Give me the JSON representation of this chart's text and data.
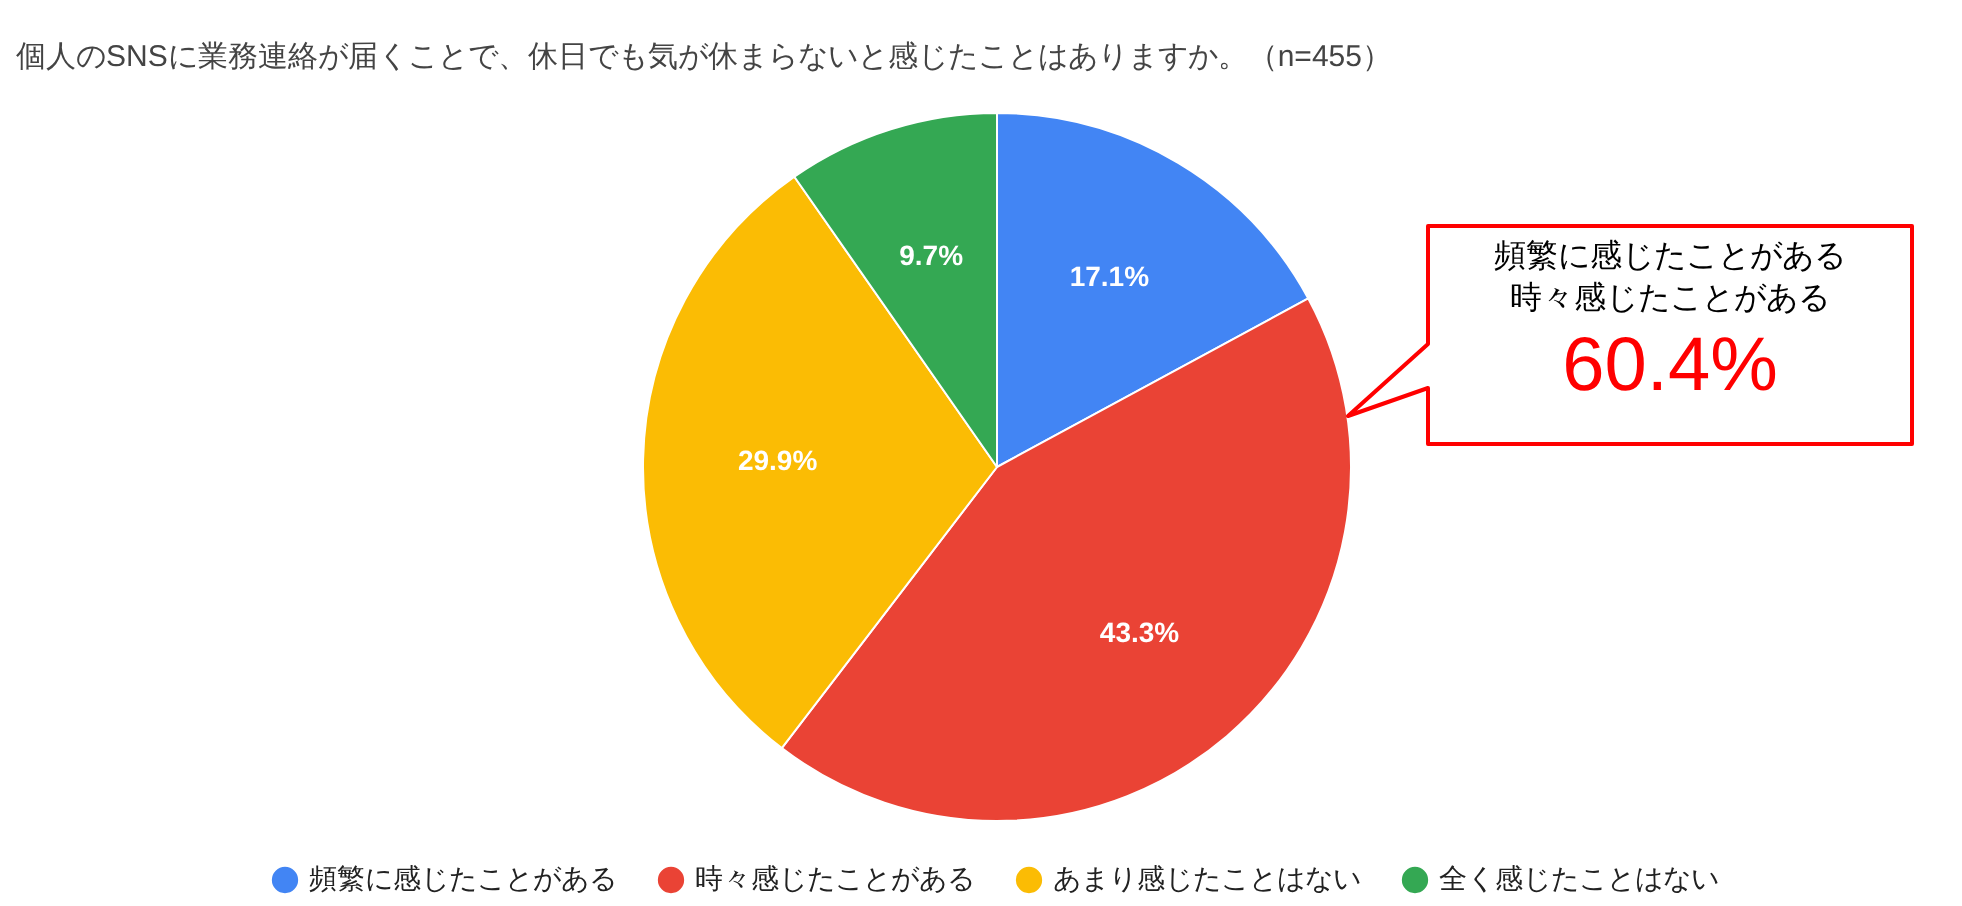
{
  "chart_data": {
    "type": "pie",
    "title": "個人のSNSに業務連絡が届くことで、休日でも気が休まらないと感じたことはありますか。（n=455）",
    "categories": [
      "頻繁に感じたことがある",
      "時々感じたことがある",
      "あまり感じたことはない",
      "全く感じたことはない"
    ],
    "values": [
      17.1,
      43.3,
      29.9,
      9.7
    ],
    "colors": [
      "#4285f4",
      "#ea4335",
      "#fbbc04",
      "#34a853"
    ],
    "value_labels": [
      "17.1%",
      "43.3%",
      "29.9%",
      "9.7%"
    ],
    "annotations": [
      "頻繁に感じたことがある",
      "時々感じたことがある",
      "60.4%"
    ],
    "legend": "bottom"
  }
}
